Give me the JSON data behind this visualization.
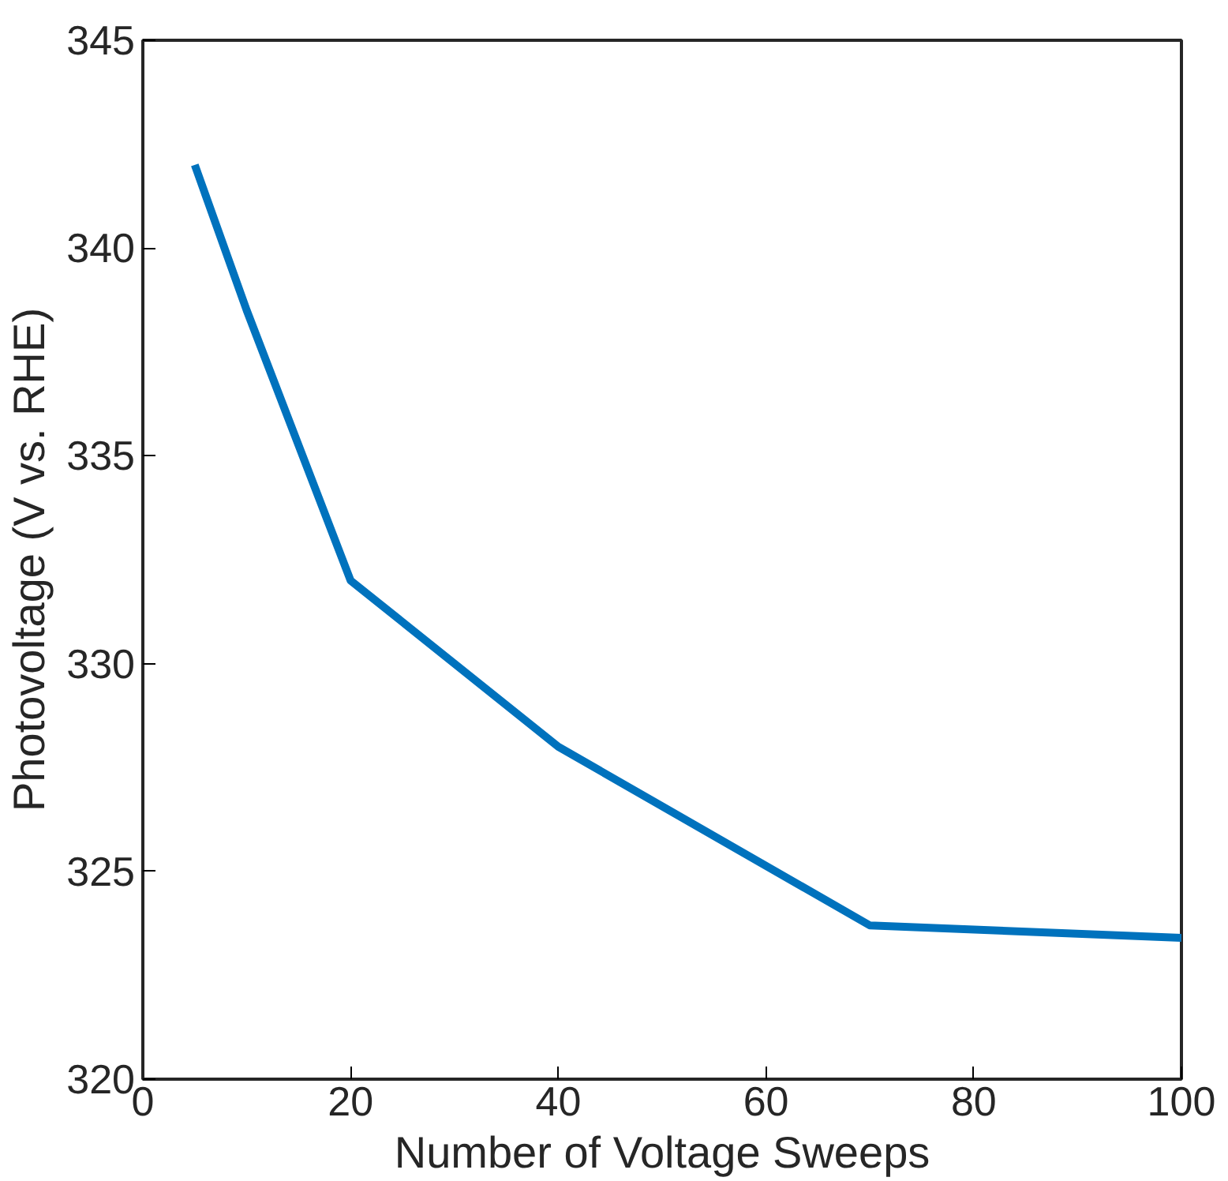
{
  "chart_data": {
    "type": "line",
    "xlabel": "Number of Voltage Sweeps",
    "ylabel": "Photovoltage (V vs. RHE)",
    "x": [
      5,
      10,
      20,
      40,
      70,
      100
    ],
    "series": [
      {
        "color": "#0072bd",
        "values": [
          342,
          338.5,
          332,
          328,
          323.7,
          323.4
        ]
      }
    ],
    "xlim": [
      0,
      100
    ],
    "xticks": [
      0,
      20,
      40,
      60,
      80,
      100
    ],
    "ylim": [
      320,
      345
    ],
    "yticks": [
      320,
      325,
      330,
      335,
      340,
      345
    ],
    "grid": false,
    "marker": "none",
    "line_style": "solid"
  }
}
